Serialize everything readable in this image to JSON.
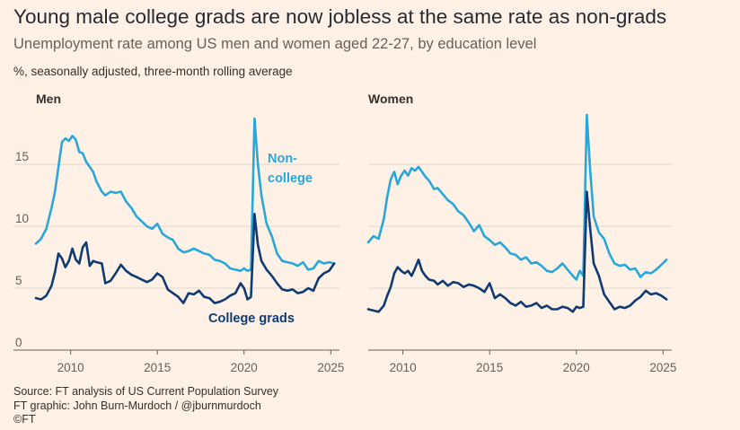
{
  "header": {
    "title": "Young male college grads are now jobless at the same rate as non-grads",
    "subtitle": "Unemployment rate among US men and women aged 22-27, by education level",
    "unit_note": "%, seasonally adjusted, three-month rolling average"
  },
  "footer": {
    "source": "Source: FT analysis of US Current Population Survey",
    "credit": "FT graphic: John Burn-Murdoch / @jburnmurdoch",
    "copyright": "©FT"
  },
  "colors": {
    "background": "#FFF1E5",
    "non_college": "#2AA7DA",
    "college": "#0F3B73",
    "grid": "#E3D6CA",
    "axis": "#66605C"
  },
  "chart_data": [
    {
      "type": "line",
      "title": "Men",
      "x_ticks": [
        "2010",
        "2015",
        "2020",
        "2025"
      ],
      "y_ticks": [
        "0",
        "5",
        "10",
        "15"
      ],
      "ylim": [
        0,
        19
      ],
      "xlim": [
        2008.0,
        2025.5
      ],
      "grid": true,
      "series": [
        {
          "name": "Non-college",
          "label_lines": [
            "Non-",
            "college"
          ],
          "x": [
            2008.0,
            2008.3,
            2008.6,
            2008.9,
            2009.1,
            2009.3,
            2009.5,
            2009.7,
            2009.9,
            2010.1,
            2010.3,
            2010.5,
            2010.7,
            2010.9,
            2011.1,
            2011.3,
            2011.5,
            2011.8,
            2012.0,
            2012.3,
            2012.6,
            2012.9,
            2013.2,
            2013.5,
            2013.8,
            2014.1,
            2014.4,
            2014.7,
            2015.0,
            2015.3,
            2015.6,
            2015.9,
            2016.2,
            2016.5,
            2016.8,
            2017.1,
            2017.4,
            2017.7,
            2018.0,
            2018.3,
            2018.6,
            2018.9,
            2019.2,
            2019.5,
            2019.8,
            2020.0,
            2020.2,
            2020.4,
            2020.6,
            2020.8,
            2021.0,
            2021.3,
            2021.6,
            2021.9,
            2022.2,
            2022.5,
            2022.8,
            2023.1,
            2023.4,
            2023.7,
            2024.0,
            2024.3,
            2024.6,
            2024.9,
            2025.2
          ],
          "values": [
            8.6,
            9.0,
            9.8,
            11.5,
            12.8,
            14.8,
            16.8,
            17.1,
            16.9,
            17.3,
            17.0,
            16.0,
            15.9,
            15.2,
            14.8,
            14.4,
            13.6,
            12.8,
            12.5,
            12.8,
            12.7,
            12.8,
            12.0,
            11.5,
            10.8,
            10.4,
            10.0,
            9.8,
            10.2,
            9.4,
            9.1,
            8.9,
            8.2,
            7.9,
            8.0,
            8.2,
            8.0,
            7.8,
            7.7,
            7.3,
            7.2,
            7.0,
            6.6,
            6.5,
            6.4,
            6.6,
            6.4,
            6.5,
            18.7,
            15.0,
            12.5,
            10.2,
            9.2,
            7.8,
            7.2,
            7.1,
            7.0,
            6.8,
            7.1,
            6.5,
            6.6,
            7.2,
            7.0,
            7.1,
            7.0
          ]
        },
        {
          "name": "College grads",
          "label_lines": [
            "College grads"
          ],
          "x": [
            2008.0,
            2008.3,
            2008.6,
            2008.9,
            2009.1,
            2009.3,
            2009.5,
            2009.7,
            2009.9,
            2010.1,
            2010.3,
            2010.5,
            2010.7,
            2010.9,
            2011.1,
            2011.3,
            2011.5,
            2011.8,
            2012.0,
            2012.3,
            2012.6,
            2012.9,
            2013.2,
            2013.5,
            2013.8,
            2014.1,
            2014.4,
            2014.7,
            2015.0,
            2015.3,
            2015.6,
            2015.9,
            2016.2,
            2016.5,
            2016.8,
            2017.1,
            2017.4,
            2017.7,
            2018.0,
            2018.3,
            2018.6,
            2018.9,
            2019.2,
            2019.5,
            2019.8,
            2020.0,
            2020.2,
            2020.4,
            2020.6,
            2020.8,
            2021.0,
            2021.3,
            2021.6,
            2021.9,
            2022.2,
            2022.5,
            2022.8,
            2023.1,
            2023.4,
            2023.7,
            2024.0,
            2024.3,
            2024.6,
            2024.9,
            2025.2
          ],
          "values": [
            4.2,
            4.1,
            4.4,
            5.2,
            6.3,
            7.8,
            7.4,
            6.7,
            7.2,
            8.2,
            7.3,
            7.0,
            8.3,
            8.7,
            6.8,
            7.2,
            7.1,
            7.0,
            5.4,
            5.6,
            6.2,
            6.9,
            6.4,
            6.1,
            5.9,
            5.7,
            5.5,
            5.7,
            6.2,
            5.9,
            4.9,
            4.6,
            4.3,
            3.8,
            4.6,
            4.5,
            4.8,
            4.3,
            4.2,
            3.8,
            3.9,
            4.1,
            4.4,
            4.6,
            5.4,
            5.0,
            4.1,
            4.3,
            11.0,
            8.5,
            7.2,
            6.5,
            6.0,
            5.4,
            4.9,
            4.8,
            4.9,
            4.6,
            4.7,
            5.0,
            4.8,
            5.8,
            6.2,
            6.4,
            7.0
          ]
        }
      ]
    },
    {
      "type": "line",
      "title": "Women",
      "x_ticks": [
        "2010",
        "2015",
        "2020",
        "2025"
      ],
      "y_ticks": [
        "0",
        "5",
        "10",
        "15"
      ],
      "ylim": [
        0,
        19
      ],
      "xlim": [
        2008.0,
        2025.5
      ],
      "grid": true,
      "series": [
        {
          "name": "Non-college",
          "x": [
            2008.0,
            2008.3,
            2008.6,
            2008.9,
            2009.1,
            2009.3,
            2009.5,
            2009.7,
            2009.9,
            2010.1,
            2010.3,
            2010.5,
            2010.7,
            2010.9,
            2011.1,
            2011.3,
            2011.5,
            2011.8,
            2012.0,
            2012.3,
            2012.6,
            2012.9,
            2013.2,
            2013.5,
            2013.8,
            2014.1,
            2014.4,
            2014.7,
            2015.0,
            2015.3,
            2015.6,
            2015.9,
            2016.2,
            2016.5,
            2016.8,
            2017.1,
            2017.4,
            2017.7,
            2018.0,
            2018.3,
            2018.6,
            2018.9,
            2019.2,
            2019.5,
            2019.8,
            2020.0,
            2020.2,
            2020.4,
            2020.6,
            2020.8,
            2021.0,
            2021.3,
            2021.6,
            2021.9,
            2022.2,
            2022.5,
            2022.8,
            2023.1,
            2023.4,
            2023.7,
            2024.0,
            2024.3,
            2024.6,
            2024.9,
            2025.2
          ],
          "values": [
            8.7,
            9.2,
            9.0,
            10.6,
            12.4,
            13.8,
            14.4,
            13.4,
            14.1,
            14.5,
            14.1,
            14.7,
            14.5,
            14.8,
            14.4,
            14.0,
            13.7,
            13.0,
            13.1,
            12.6,
            12.1,
            11.8,
            11.2,
            10.9,
            10.3,
            9.6,
            10.1,
            9.2,
            8.9,
            8.5,
            8.7,
            8.3,
            7.8,
            7.7,
            7.3,
            7.5,
            7.0,
            7.1,
            6.8,
            6.4,
            6.3,
            6.6,
            7.0,
            6.5,
            6.0,
            5.7,
            6.4,
            6.0,
            19.0,
            14.5,
            10.8,
            9.5,
            9.0,
            7.8,
            7.0,
            6.8,
            6.9,
            6.5,
            6.6,
            5.9,
            6.3,
            6.2,
            6.5,
            6.9,
            7.3
          ]
        },
        {
          "name": "College grads",
          "x": [
            2008.0,
            2008.3,
            2008.6,
            2008.9,
            2009.1,
            2009.3,
            2009.5,
            2009.7,
            2009.9,
            2010.1,
            2010.3,
            2010.5,
            2010.7,
            2010.9,
            2011.1,
            2011.3,
            2011.5,
            2011.8,
            2012.0,
            2012.3,
            2012.6,
            2012.9,
            2013.2,
            2013.5,
            2013.8,
            2014.1,
            2014.4,
            2014.7,
            2015.0,
            2015.3,
            2015.6,
            2015.9,
            2016.2,
            2016.5,
            2016.8,
            2017.1,
            2017.4,
            2017.7,
            2018.0,
            2018.3,
            2018.6,
            2018.9,
            2019.2,
            2019.5,
            2019.8,
            2020.0,
            2020.2,
            2020.4,
            2020.6,
            2020.8,
            2021.0,
            2021.3,
            2021.6,
            2021.9,
            2022.2,
            2022.5,
            2022.8,
            2023.1,
            2023.4,
            2023.7,
            2024.0,
            2024.3,
            2024.6,
            2024.9,
            2025.2
          ],
          "values": [
            3.3,
            3.2,
            3.1,
            3.6,
            4.4,
            5.1,
            6.2,
            6.7,
            6.4,
            6.2,
            6.4,
            6.0,
            6.6,
            7.3,
            6.4,
            6.0,
            5.7,
            5.6,
            5.3,
            5.6,
            5.2,
            5.5,
            5.4,
            5.1,
            5.3,
            5.2,
            5.0,
            4.7,
            5.4,
            4.2,
            4.5,
            4.2,
            3.8,
            3.6,
            3.9,
            3.5,
            3.6,
            3.8,
            3.4,
            3.6,
            3.3,
            3.3,
            3.5,
            3.4,
            3.1,
            3.5,
            3.4,
            3.5,
            12.8,
            9.8,
            7.0,
            6.0,
            4.5,
            3.9,
            3.3,
            3.5,
            3.4,
            3.6,
            4.0,
            4.3,
            4.8,
            4.5,
            4.6,
            4.4,
            4.1
          ]
        }
      ]
    }
  ]
}
